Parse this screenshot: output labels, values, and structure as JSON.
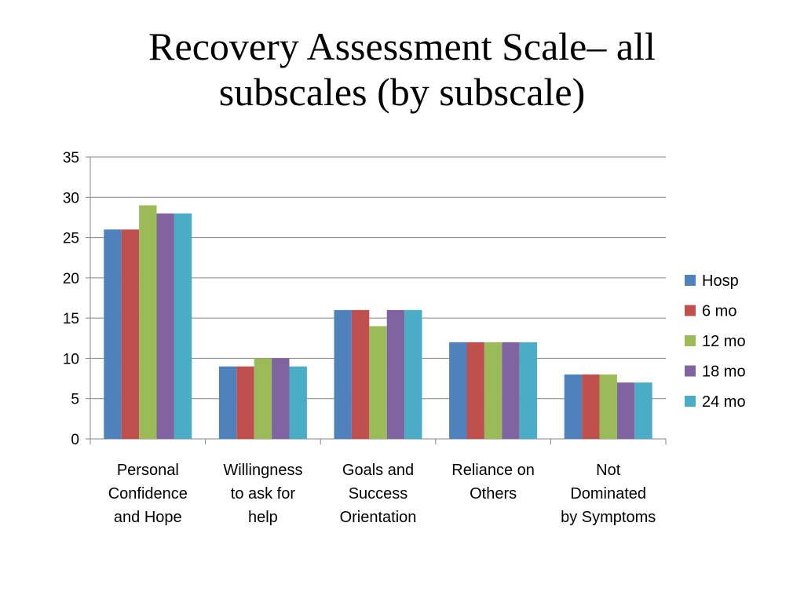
{
  "slide": {
    "title_lines": [
      "Recovery Assessment Scale– all",
      "subscales (by subscale)"
    ]
  },
  "chart_data": {
    "type": "bar",
    "title": "",
    "xlabel": "",
    "ylabel": "",
    "ylim": [
      0,
      35
    ],
    "yticks": [
      0,
      5,
      10,
      15,
      20,
      25,
      30,
      35
    ],
    "grid": true,
    "legend_position": "right",
    "categories": [
      [
        "Personal",
        "Confidence",
        "and Hope"
      ],
      [
        "Willingness",
        "to ask for",
        "help"
      ],
      [
        "Goals and",
        "Success",
        "Orientation"
      ],
      [
        "Reliance on",
        "Others"
      ],
      [
        "Not",
        "Dominated",
        "by Symptoms"
      ]
    ],
    "series": [
      {
        "name": "Hosp",
        "color": "#4F81BD",
        "values": [
          26,
          9,
          16,
          12,
          8
        ]
      },
      {
        "name": "6 mo",
        "color": "#C0504D",
        "values": [
          26,
          9,
          16,
          12,
          8
        ]
      },
      {
        "name": "12 mo",
        "color": "#9BBB59",
        "values": [
          29,
          10,
          14,
          12,
          8
        ]
      },
      {
        "name": "18 mo",
        "color": "#8064A2",
        "values": [
          28,
          10,
          16,
          12,
          7
        ]
      },
      {
        "name": "24 mo",
        "color": "#4BACC6",
        "values": [
          28,
          9,
          16,
          12,
          7
        ]
      }
    ]
  }
}
